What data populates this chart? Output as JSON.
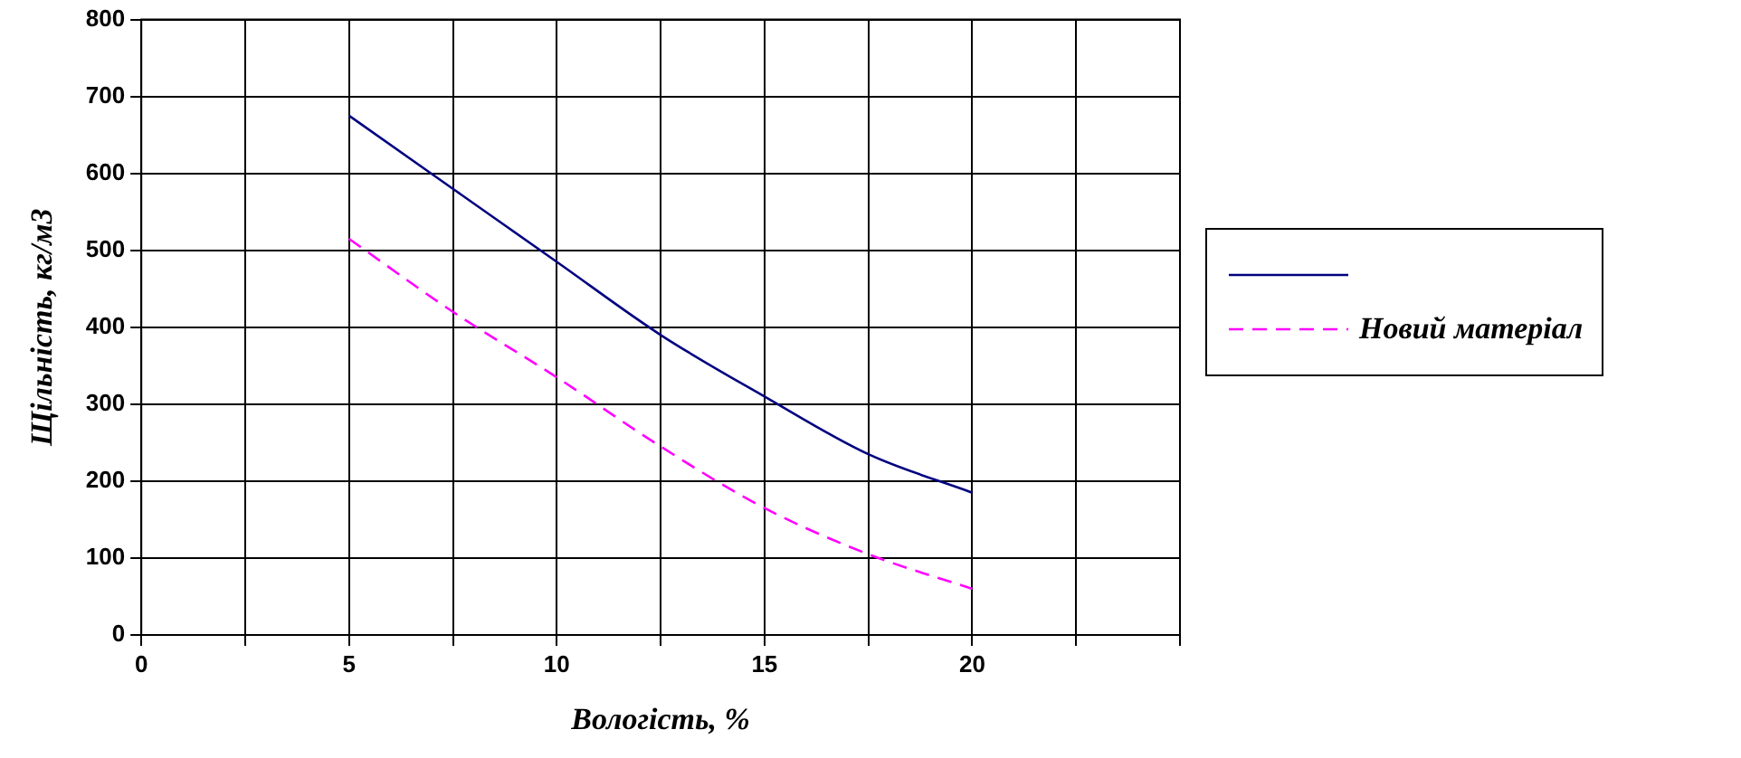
{
  "chart_data": {
    "type": "line",
    "xlabel": "Вологість, %",
    "ylabel": "Щільність, кг/м3",
    "x": [
      5,
      7.5,
      10,
      12.5,
      15,
      17.5,
      20
    ],
    "series": [
      {
        "color": "#000080",
        "line_style": "solid",
        "values": [
          675,
          580,
          485,
          390,
          310,
          235,
          185
        ]
      },
      {
        "name": "Новий матеріал",
        "color": "#ff00ff",
        "line_style": "dashed",
        "values": [
          515,
          420,
          335,
          245,
          165,
          105,
          60
        ]
      }
    ],
    "xlim": [
      0,
      25
    ],
    "xticks": [
      0,
      {
        "value": 2.5,
        "label": null
      },
      5,
      {
        "value": 7.5,
        "label": null
      },
      10,
      {
        "value": 12.5,
        "label": null
      },
      15,
      {
        "value": 17.5,
        "label": null
      },
      20,
      {
        "value": 22.5,
        "label": null
      },
      {
        "value": 25,
        "label": null
      }
    ],
    "ylim": [
      0,
      800
    ],
    "yticks": [
      0,
      100,
      200,
      300,
      400,
      500,
      600,
      700,
      800
    ],
    "grid": true,
    "legend": "right",
    "marker": "none"
  }
}
